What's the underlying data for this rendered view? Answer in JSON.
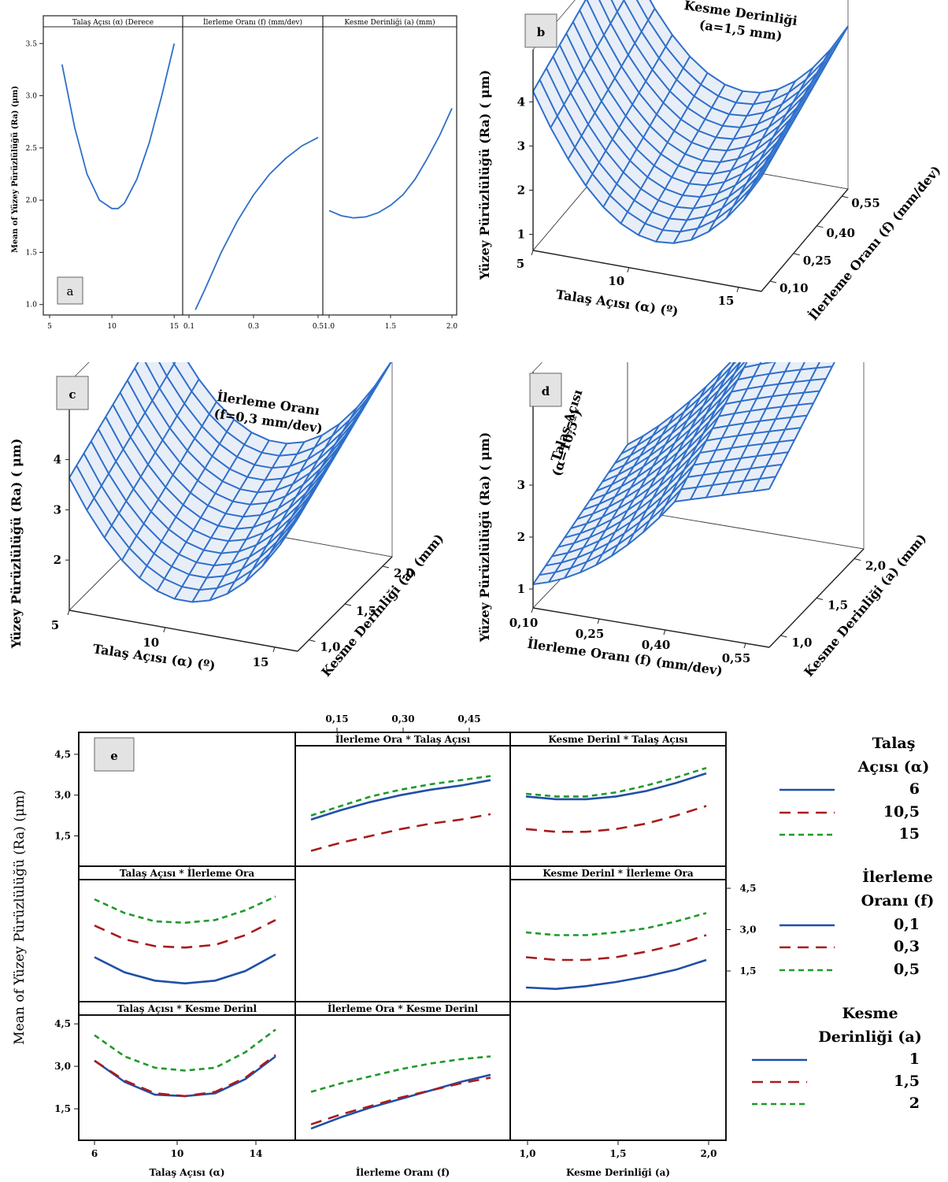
{
  "panels": {
    "a": {
      "label": "a"
    },
    "b": {
      "label": "b"
    },
    "c": {
      "label": "c"
    },
    "d": {
      "label": "d"
    },
    "e": {
      "label": "e"
    }
  },
  "colors": {
    "blue": "#2f6fc9",
    "blue_dark": "#1f4fa8",
    "red": "#a81c1c",
    "green": "#1f9a2a",
    "mesh_fill": "#e8eef8"
  },
  "chart_data": [
    {
      "id": "a",
      "type": "line",
      "ylabel": "Mean of Yüzey Pürüzlülüğü (Ra) (μm)",
      "ylim": [
        0.9,
        3.6
      ],
      "yticks": [
        "1.0",
        "1.5",
        "2.0",
        "2.5",
        "3.0",
        "3.5"
      ],
      "ytick_values": [
        1.0,
        1.5,
        2.0,
        2.5,
        3.0,
        3.5
      ],
      "facets": [
        {
          "title": "Talaş Açısı (α) (Derece",
          "xticks": [
            "5",
            "10",
            "15"
          ],
          "xtick_values": [
            5,
            10,
            15
          ],
          "xlim": [
            5,
            15.3
          ],
          "x": [
            6,
            7,
            8,
            9,
            10,
            10.5,
            11,
            12,
            13,
            14,
            15
          ],
          "y": [
            3.3,
            2.7,
            2.25,
            2.0,
            1.92,
            1.92,
            1.97,
            2.2,
            2.55,
            3.0,
            3.5
          ]
        },
        {
          "title": "İlerleme Oranı (f) (mm/dev)",
          "xticks": [
            "0.1",
            "0.3",
            "0.5"
          ],
          "xtick_values": [
            0.1,
            0.3,
            0.5
          ],
          "xlim": [
            0.1,
            0.5
          ],
          "x": [
            0.12,
            0.15,
            0.2,
            0.25,
            0.3,
            0.35,
            0.4,
            0.45,
            0.5
          ],
          "y": [
            0.95,
            1.15,
            1.5,
            1.8,
            2.05,
            2.25,
            2.4,
            2.52,
            2.6
          ]
        },
        {
          "title": "Kesme Derinliği (a) (mm)",
          "xticks": [
            "1.0",
            "1.5",
            "2.0"
          ],
          "xtick_values": [
            1.0,
            1.5,
            2.0
          ],
          "xlim": [
            1.0,
            2.0
          ],
          "x": [
            1.0,
            1.1,
            1.2,
            1.3,
            1.4,
            1.5,
            1.6,
            1.7,
            1.8,
            1.9,
            2.0
          ],
          "y": [
            1.9,
            1.85,
            1.83,
            1.84,
            1.88,
            1.95,
            2.05,
            2.2,
            2.4,
            2.62,
            2.88
          ]
        }
      ]
    },
    {
      "id": "b",
      "type": "surface",
      "title": [
        "Kesme Derinliği",
        "(a=1,5 mm)"
      ],
      "zlabel": "Yüzey Pürüzlülüğü  (Ra) ( μm)",
      "zticks": [
        "1",
        "2",
        "3",
        "4"
      ],
      "xlabel": "Talaş Açısı (α) (º)",
      "xticks": [
        "5",
        "10",
        "15"
      ],
      "ylabel": "İlerleme Oranı (f) (mm/dev)",
      "yticks": [
        "0,10",
        "0,25",
        "0,40",
        "0,55"
      ]
    },
    {
      "id": "c",
      "type": "surface",
      "title": [
        "İlerleme  Oranı",
        "(f=0,3  mm/dev)"
      ],
      "zlabel": "Yüzey Pürüzlülüğü  (Ra) ( μm)",
      "zticks": [
        "2",
        "3",
        "4"
      ],
      "xlabel": "Talaş Açısı (α) (º)",
      "xticks": [
        "5",
        "10",
        "15"
      ],
      "ylabel": "Kesme Derinliği (a) (mm)",
      "yticks": [
        "1,0",
        "1,5",
        "2,0"
      ]
    },
    {
      "id": "d",
      "type": "surface",
      "title": [
        "Talaş Açısı",
        "(α=10,5º)"
      ],
      "zlabel": "Yüzey Pürüzlülüğü  (Ra) ( μm)",
      "zticks": [
        "1",
        "2",
        "3"
      ],
      "xlabel": "İlerleme  Oranı (f) (mm/dev)",
      "xticks": [
        "0,10",
        "0,25",
        "0,40",
        "0,55"
      ],
      "ylabel": "Kesme Derinliği (a) (mm)",
      "yticks": [
        "1,0",
        "1,5",
        "2,0"
      ]
    },
    {
      "id": "e",
      "type": "line",
      "ylabel": "Mean of Yüzey Pürüzlülüğü (Ra) (μm)",
      "yticks": [
        "1,5",
        "3,0",
        "4,5"
      ],
      "ytick_values": [
        1.5,
        3.0,
        4.5
      ],
      "ylim": [
        0.5,
        4.7
      ],
      "top_xticks": [
        "0,15",
        "0,30",
        "0,45"
      ],
      "bottom_axes": [
        {
          "label": "Talaş Açısı (α)",
          "xticks": [
            "6",
            "10",
            "14"
          ]
        },
        {
          "label": "İlerleme Oranı (f)",
          "xticks": []
        },
        {
          "label": "Kesme Derinliği (a)",
          "xticks": [
            "1,0",
            "1,5",
            "2,0"
          ]
        }
      ],
      "legends": [
        {
          "title": [
            "Talaş",
            "Açısı (α)"
          ],
          "entries": [
            "6",
            "10,5",
            "15"
          ]
        },
        {
          "title": [
            "İlerleme",
            "Oranı (f)"
          ],
          "entries": [
            "0,1",
            "0,3",
            "0,5"
          ]
        },
        {
          "title": [
            "Kesme",
            "Derinliği (a)"
          ],
          "entries": [
            "1",
            "1,5",
            "2"
          ]
        }
      ],
      "cells": [
        {
          "row": 0,
          "col": 1,
          "title": "İlerleme Ora * Talaş Açısı",
          "series": [
            {
              "style": "solid",
              "values": [
                2.1,
                2.45,
                2.75,
                3.0,
                3.2,
                3.35,
                3.55
              ]
            },
            {
              "style": "dashed",
              "values": [
                0.95,
                1.25,
                1.5,
                1.75,
                1.95,
                2.1,
                2.3
              ]
            },
            {
              "style": "dotted",
              "values": [
                2.25,
                2.6,
                2.95,
                3.2,
                3.4,
                3.55,
                3.7
              ]
            }
          ]
        },
        {
          "row": 0,
          "col": 2,
          "title": "Kesme Derinl * Talaş Açısı",
          "series": [
            {
              "style": "solid",
              "values": [
                2.95,
                2.85,
                2.85,
                2.95,
                3.15,
                3.45,
                3.8
              ]
            },
            {
              "style": "dashed",
              "values": [
                1.75,
                1.65,
                1.65,
                1.75,
                1.95,
                2.25,
                2.6
              ]
            },
            {
              "style": "dotted",
              "values": [
                3.05,
                2.95,
                2.95,
                3.1,
                3.35,
                3.65,
                4.0
              ]
            }
          ]
        },
        {
          "row": 1,
          "col": 0,
          "title": "Talaş Açısı * İlerleme Ora",
          "series": [
            {
              "style": "solid",
              "values": [
                2.0,
                1.45,
                1.15,
                1.05,
                1.15,
                1.5,
                2.1
              ]
            },
            {
              "style": "dashed",
              "values": [
                3.15,
                2.65,
                2.4,
                2.35,
                2.45,
                2.8,
                3.35
              ]
            },
            {
              "style": "dotted",
              "values": [
                4.1,
                3.6,
                3.3,
                3.25,
                3.35,
                3.7,
                4.2
              ]
            }
          ]
        },
        {
          "row": 1,
          "col": 2,
          "title": "Kesme Derinl * İlerleme Ora",
          "right_yticks": [
            "1,5",
            "3,0",
            "4,5"
          ],
          "series": [
            {
              "style": "solid",
              "values": [
                0.9,
                0.85,
                0.95,
                1.1,
                1.3,
                1.55,
                1.9
              ]
            },
            {
              "style": "dashed",
              "values": [
                2.0,
                1.9,
                1.9,
                2.0,
                2.2,
                2.45,
                2.8
              ]
            },
            {
              "style": "dotted",
              "values": [
                2.9,
                2.8,
                2.8,
                2.9,
                3.05,
                3.3,
                3.6
              ]
            }
          ]
        },
        {
          "row": 2,
          "col": 0,
          "title": "Talaş Açısı * Kesme Derinl",
          "series": [
            {
              "style": "solid",
              "values": [
                3.2,
                2.45,
                2.0,
                1.95,
                2.05,
                2.55,
                3.35
              ]
            },
            {
              "style": "dashed",
              "values": [
                3.2,
                2.5,
                2.05,
                1.95,
                2.1,
                2.6,
                3.4
              ]
            },
            {
              "style": "dotted",
              "values": [
                4.1,
                3.35,
                2.95,
                2.85,
                2.95,
                3.5,
                4.3
              ]
            }
          ]
        },
        {
          "row": 2,
          "col": 1,
          "title": "İlerleme Ora * Kesme Derinl",
          "series": [
            {
              "style": "solid",
              "values": [
                0.8,
                1.2,
                1.55,
                1.85,
                2.15,
                2.45,
                2.7
              ]
            },
            {
              "style": "dashed",
              "values": [
                0.95,
                1.3,
                1.6,
                1.9,
                2.15,
                2.4,
                2.6
              ]
            },
            {
              "style": "dotted",
              "values": [
                2.1,
                2.4,
                2.65,
                2.9,
                3.1,
                3.25,
                3.35
              ]
            }
          ]
        }
      ]
    }
  ]
}
